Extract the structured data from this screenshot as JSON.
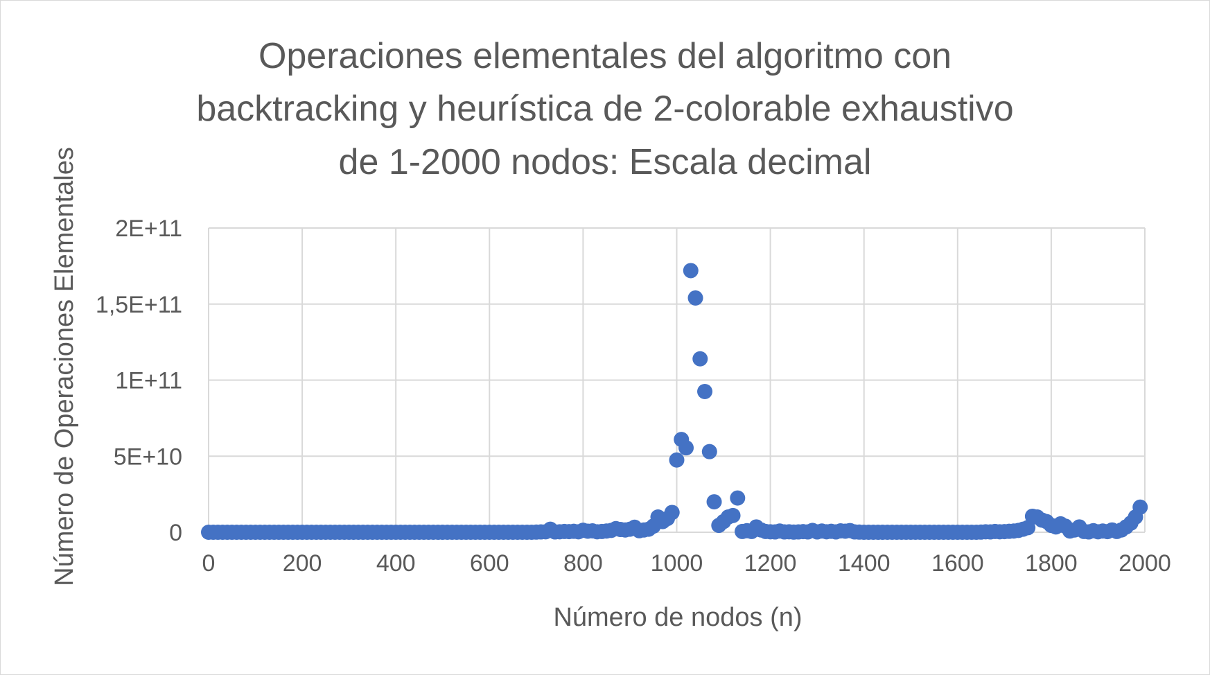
{
  "chart_data": {
    "type": "scatter",
    "title_lines": [
      "Operaciones elementales del algoritmo con",
      "backtracking y heurística de 2-colorable exhaustivo",
      "de 1-2000 nodos: Escala decimal"
    ],
    "xlabel": "Número de nodos (n)",
    "ylabel": "Número de Operaciones Elementales",
    "xlim": [
      0,
      2000
    ],
    "ylim": [
      0,
      200000000000
    ],
    "x_ticks": [
      0,
      200,
      400,
      600,
      800,
      1000,
      1200,
      1400,
      1600,
      1800,
      2000
    ],
    "x_tick_labels": [
      "0",
      "200",
      "400",
      "600",
      "800",
      "1000",
      "1200",
      "1400",
      "1600",
      "1800",
      "2000"
    ],
    "y_ticks": [
      0,
      50000000000,
      100000000000,
      150000000000,
      200000000000
    ],
    "y_tick_labels": [
      "0",
      "5E+10",
      "1E+11",
      "1,5E+11",
      "2E+11"
    ],
    "grid": true,
    "legend": "none",
    "marker_color": "#4472C4",
    "series": [
      {
        "points": [
          [
            0,
            0
          ],
          [
            10,
            0
          ],
          [
            20,
            0
          ],
          [
            30,
            0
          ],
          [
            40,
            0
          ],
          [
            50,
            0
          ],
          [
            60,
            0
          ],
          [
            70,
            0
          ],
          [
            80,
            0
          ],
          [
            90,
            0
          ],
          [
            100,
            0
          ],
          [
            110,
            0
          ],
          [
            120,
            0
          ],
          [
            130,
            0
          ],
          [
            140,
            0
          ],
          [
            150,
            0
          ],
          [
            160,
            0
          ],
          [
            170,
            0
          ],
          [
            180,
            0
          ],
          [
            190,
            0
          ],
          [
            200,
            0
          ],
          [
            210,
            0
          ],
          [
            220,
            0
          ],
          [
            230,
            0
          ],
          [
            240,
            0
          ],
          [
            250,
            0
          ],
          [
            260,
            0
          ],
          [
            270,
            0
          ],
          [
            280,
            0
          ],
          [
            290,
            0
          ],
          [
            300,
            0
          ],
          [
            310,
            0
          ],
          [
            320,
            0
          ],
          [
            330,
            0
          ],
          [
            340,
            0
          ],
          [
            350,
            0
          ],
          [
            360,
            0
          ],
          [
            370,
            0
          ],
          [
            380,
            0
          ],
          [
            390,
            0
          ],
          [
            400,
            0
          ],
          [
            410,
            0
          ],
          [
            420,
            0
          ],
          [
            430,
            0
          ],
          [
            440,
            0
          ],
          [
            450,
            0
          ],
          [
            460,
            0
          ],
          [
            470,
            0
          ],
          [
            480,
            0
          ],
          [
            490,
            0
          ],
          [
            500,
            0
          ],
          [
            510,
            0
          ],
          [
            520,
            0
          ],
          [
            530,
            0
          ],
          [
            540,
            0
          ],
          [
            550,
            0
          ],
          [
            560,
            0
          ],
          [
            570,
            0
          ],
          [
            580,
            0
          ],
          [
            590,
            0
          ],
          [
            600,
            0
          ],
          [
            610,
            0
          ],
          [
            620,
            0
          ],
          [
            630,
            0
          ],
          [
            640,
            0
          ],
          [
            650,
            0
          ],
          [
            660,
            0
          ],
          [
            670,
            0
          ],
          [
            680,
            0
          ],
          [
            690,
            0
          ],
          [
            700,
            100000000
          ],
          [
            710,
            200000000
          ],
          [
            720,
            300000000
          ],
          [
            730,
            2000000000
          ],
          [
            740,
            200000000
          ],
          [
            750,
            300000000
          ],
          [
            760,
            500000000
          ],
          [
            770,
            400000000
          ],
          [
            780,
            600000000
          ],
          [
            790,
            300000000
          ],
          [
            800,
            1300000000
          ],
          [
            810,
            700000000
          ],
          [
            820,
            900000000
          ],
          [
            830,
            300000000
          ],
          [
            840,
            500000000
          ],
          [
            850,
            800000000
          ],
          [
            860,
            1200000000
          ],
          [
            870,
            2400000000
          ],
          [
            880,
            1800000000
          ],
          [
            890,
            1500000000
          ],
          [
            900,
            2000000000
          ],
          [
            910,
            3300000000
          ],
          [
            920,
            1000000000
          ],
          [
            930,
            1500000000
          ],
          [
            940,
            2000000000
          ],
          [
            950,
            4000000000
          ],
          [
            960,
            10000000000
          ],
          [
            970,
            7000000000
          ],
          [
            980,
            9000000000
          ],
          [
            990,
            13000000000
          ],
          [
            1000,
            47500000000
          ],
          [
            1010,
            61000000000
          ],
          [
            1020,
            55500000000
          ],
          [
            1030,
            172000000000
          ],
          [
            1040,
            154000000000
          ],
          [
            1050,
            114000000000
          ],
          [
            1060,
            92500000000
          ],
          [
            1070,
            53000000000
          ],
          [
            1080,
            20000000000
          ],
          [
            1090,
            4500000000
          ],
          [
            1100,
            7000000000
          ],
          [
            1110,
            10000000000
          ],
          [
            1120,
            11000000000
          ],
          [
            1130,
            22500000000
          ],
          [
            1140,
            500000000
          ],
          [
            1150,
            1000000000
          ],
          [
            1160,
            500000000
          ],
          [
            1170,
            3500000000
          ],
          [
            1180,
            1500000000
          ],
          [
            1190,
            500000000
          ],
          [
            1200,
            300000000
          ],
          [
            1210,
            200000000
          ],
          [
            1220,
            800000000
          ],
          [
            1230,
            200000000
          ],
          [
            1240,
            300000000
          ],
          [
            1250,
            100000000
          ],
          [
            1260,
            200000000
          ],
          [
            1270,
            400000000
          ],
          [
            1280,
            200000000
          ],
          [
            1290,
            1200000000
          ],
          [
            1300,
            200000000
          ],
          [
            1310,
            800000000
          ],
          [
            1320,
            300000000
          ],
          [
            1330,
            600000000
          ],
          [
            1340,
            200000000
          ],
          [
            1350,
            900000000
          ],
          [
            1360,
            700000000
          ],
          [
            1370,
            1100000000
          ],
          [
            1380,
            200000000
          ],
          [
            1390,
            100000000
          ],
          [
            1400,
            0
          ],
          [
            1410,
            0
          ],
          [
            1420,
            0
          ],
          [
            1430,
            0
          ],
          [
            1440,
            0
          ],
          [
            1450,
            0
          ],
          [
            1460,
            0
          ],
          [
            1470,
            0
          ],
          [
            1480,
            0
          ],
          [
            1490,
            0
          ],
          [
            1500,
            0
          ],
          [
            1510,
            0
          ],
          [
            1520,
            0
          ],
          [
            1530,
            0
          ],
          [
            1540,
            0
          ],
          [
            1550,
            0
          ],
          [
            1560,
            0
          ],
          [
            1570,
            0
          ],
          [
            1580,
            0
          ],
          [
            1590,
            0
          ],
          [
            1600,
            0
          ],
          [
            1610,
            0
          ],
          [
            1620,
            0
          ],
          [
            1630,
            0
          ],
          [
            1640,
            0
          ],
          [
            1650,
            100000000
          ],
          [
            1660,
            300000000
          ],
          [
            1670,
            200000000
          ],
          [
            1680,
            500000000
          ],
          [
            1690,
            300000000
          ],
          [
            1700,
            400000000
          ],
          [
            1710,
            600000000
          ],
          [
            1720,
            800000000
          ],
          [
            1730,
            1200000000
          ],
          [
            1740,
            2000000000
          ],
          [
            1750,
            3000000000
          ],
          [
            1760,
            10500000000
          ],
          [
            1770,
            10000000000
          ],
          [
            1780,
            8000000000
          ],
          [
            1790,
            7000000000
          ],
          [
            1800,
            4500000000
          ],
          [
            1810,
            3500000000
          ],
          [
            1820,
            5500000000
          ],
          [
            1830,
            4000000000
          ],
          [
            1840,
            800000000
          ],
          [
            1850,
            1500000000
          ],
          [
            1860,
            3500000000
          ],
          [
            1870,
            500000000
          ],
          [
            1880,
            200000000
          ],
          [
            1890,
            1000000000
          ],
          [
            1900,
            300000000
          ],
          [
            1910,
            800000000
          ],
          [
            1920,
            400000000
          ],
          [
            1930,
            1500000000
          ],
          [
            1940,
            500000000
          ],
          [
            1950,
            1500000000
          ],
          [
            1960,
            3500000000
          ],
          [
            1970,
            6000000000
          ],
          [
            1980,
            10000000000
          ],
          [
            1990,
            16500000000
          ]
        ]
      }
    ]
  }
}
